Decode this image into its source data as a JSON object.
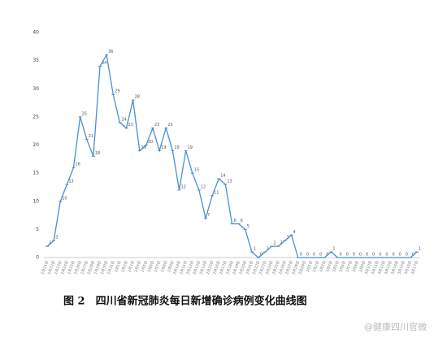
{
  "chart_data": {
    "type": "line",
    "caption": "图 2　四川省新冠肺炎每日新增确诊病例变化曲线图",
    "watermark": "@健康四川官微",
    "categories": [
      "1月21日",
      "1月22日",
      "1月23日",
      "1月24日",
      "1月25日",
      "1月26日",
      "1月27日",
      "1月28日",
      "1月29日",
      "1月30日",
      "1月31日",
      "2月1日",
      "2月2日",
      "2月3日",
      "2月4日",
      "2月5日",
      "2月6日",
      "2月7日",
      "2月8日",
      "2月9日",
      "2月10日",
      "2月11日",
      "2月12日",
      "2月13日",
      "2月14日",
      "2月15日",
      "2月16日",
      "2月17日",
      "2月18日",
      "2月19日",
      "2月20日",
      "2月21日",
      "2月22日",
      "2月23日",
      "2月24日",
      "2月25日",
      "2月26日",
      "2月27日",
      "2月28日",
      "2月29日",
      "3月1日",
      "3月2日",
      "3月3日",
      "3月4日",
      "3月5日",
      "3月6日",
      "3月7日",
      "3月8日",
      "3月9日",
      "3月10日",
      "3月11日",
      "3月12日",
      "3月13日",
      "3月14日",
      "3月15日",
      "3月16日",
      "3月17日"
    ],
    "series": [
      {
        "name": "新增确诊",
        "color": "#4a8fd6",
        "values": [
          2,
          3,
          10,
          13,
          16,
          25,
          21,
          18,
          34,
          36,
          29,
          24,
          23,
          28,
          19,
          20,
          23,
          19,
          23,
          19,
          12,
          19,
          15,
          12,
          7,
          11,
          14,
          13,
          6,
          6,
          5,
          1,
          0,
          1,
          2,
          2,
          3,
          4,
          0,
          0,
          0,
          0,
          0,
          1,
          0,
          0,
          0,
          0,
          0,
          0,
          0,
          0,
          0,
          0,
          0,
          0,
          1
        ]
      }
    ],
    "ylim": [
      0,
      40
    ],
    "yticks": [
      0,
      5,
      10,
      15,
      20,
      25,
      30,
      35,
      40
    ],
    "grid": false
  }
}
